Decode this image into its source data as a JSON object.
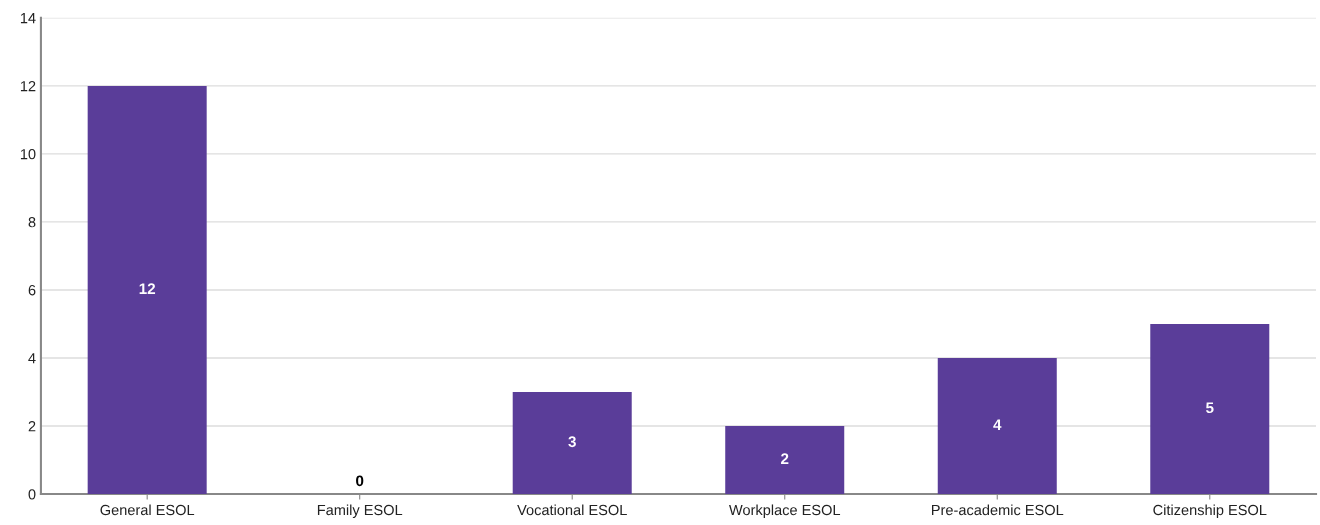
{
  "chart_data": {
    "type": "bar",
    "categories": [
      "General ESOL",
      "Family ESOL",
      "Vocational ESOL",
      "Workplace ESOL",
      "Pre-academic ESOL",
      "Citizenship ESOL"
    ],
    "values": [
      12,
      0,
      3,
      2,
      4,
      5
    ],
    "color": "#5a3d99",
    "ylim": [
      0,
      14
    ],
    "yticks": [
      0,
      2,
      4,
      6,
      8,
      10,
      12,
      14
    ],
    "grid": "y",
    "data_labels": true
  }
}
